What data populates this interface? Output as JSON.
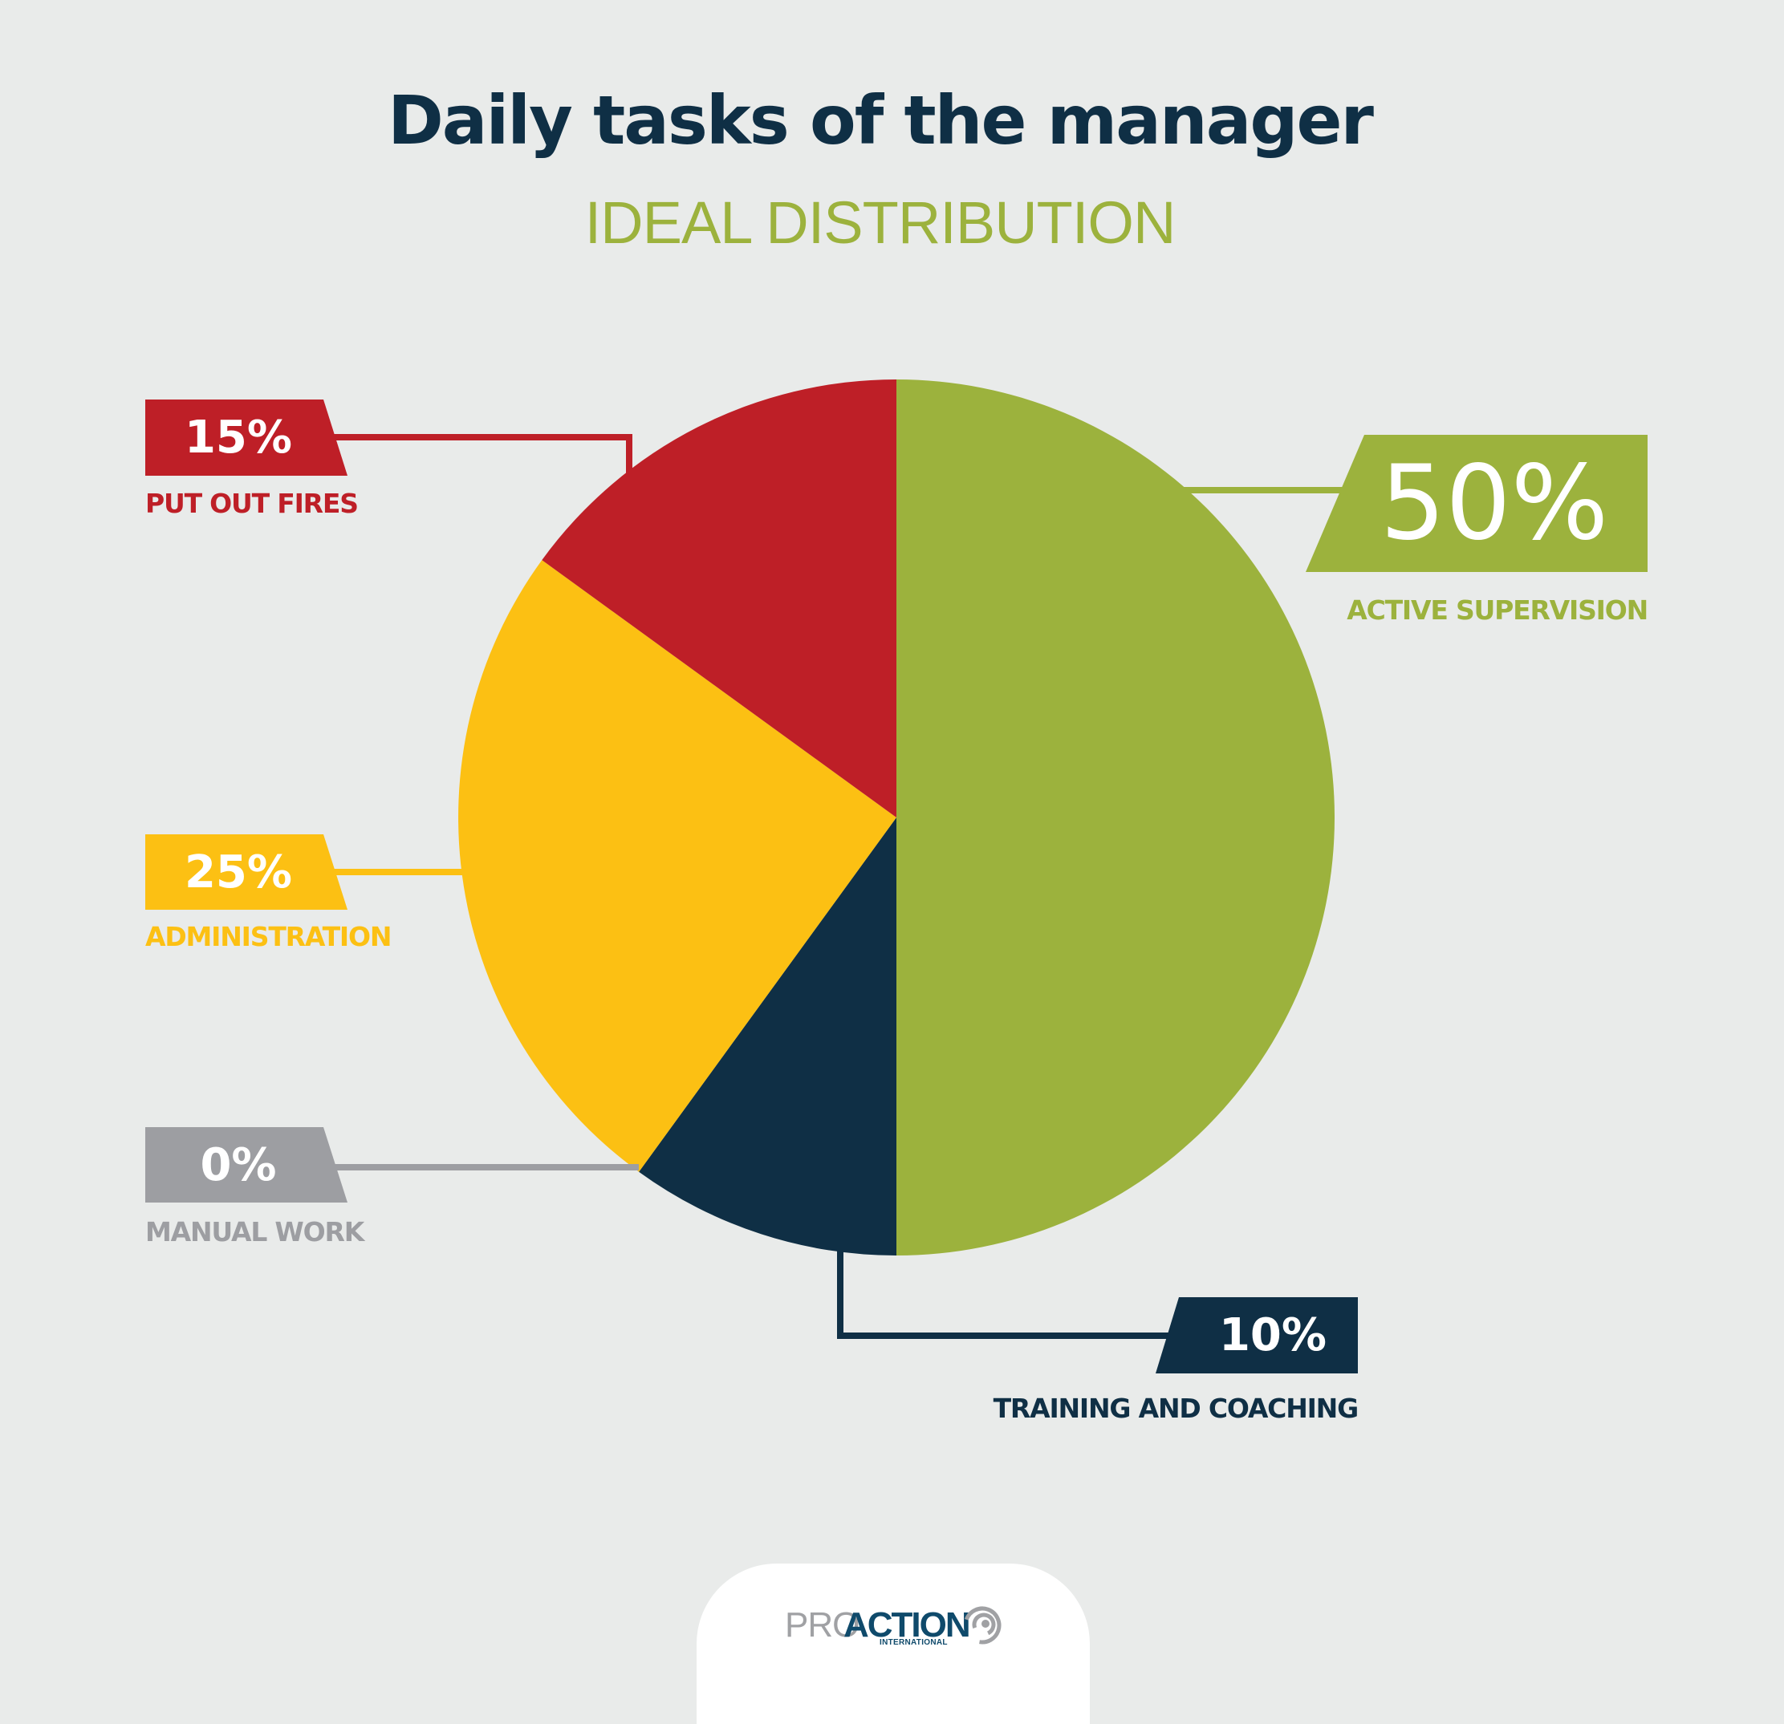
{
  "header": {
    "title": "Daily tasks of the manager",
    "subtitle": "IDEAL DISTRIBUTION"
  },
  "colors": {
    "background": "#e9ebea",
    "title": "#0f2f45",
    "subtitle": "#9cb23d",
    "logo_gray": "#a0a1a4",
    "logo_navy": "#0f4a6b"
  },
  "chart_data": {
    "type": "pie",
    "title": "Daily tasks of the manager",
    "subtitle": "IDEAL DISTRIBUTION",
    "unit": "%",
    "start_angle_deg": 0,
    "direction": "clockwise",
    "categories": [
      "ACTIVE SUPERVISION",
      "TRAINING AND COACHING",
      "MANUAL WORK",
      "ADMINISTRATION",
      "PUT OUT FIRES"
    ],
    "values": [
      50,
      10,
      0,
      25,
      15
    ],
    "colors": [
      "#9cb23d",
      "#0f2f45",
      "#9d9ea2",
      "#fcc013",
      "#be1f27"
    ],
    "labels": [
      "50%",
      "10%",
      "0%",
      "25%",
      "15%"
    ],
    "legend": "callout tags with leader lines"
  },
  "callouts": [
    {
      "key": "put_out_fires",
      "value": "15%",
      "label": "PUT OUT FIRES",
      "color": "#be1f27"
    },
    {
      "key": "active_supervision",
      "value": "50%",
      "label": "ACTIVE SUPERVISION",
      "color": "#9cb23d"
    },
    {
      "key": "administration",
      "value": "25%",
      "label": "ADMINISTRATION",
      "color": "#fcc013"
    },
    {
      "key": "manual_work",
      "value": "0%",
      "label": "MANUAL WORK",
      "color": "#9d9ea2"
    },
    {
      "key": "training_coaching",
      "value": "10%",
      "label": "TRAINING AND COACHING",
      "color": "#0f2f45"
    }
  ],
  "footer": {
    "logo_pro": "PRO",
    "logo_action": "ACTION",
    "logo_international": "INTERNATIONAL"
  }
}
